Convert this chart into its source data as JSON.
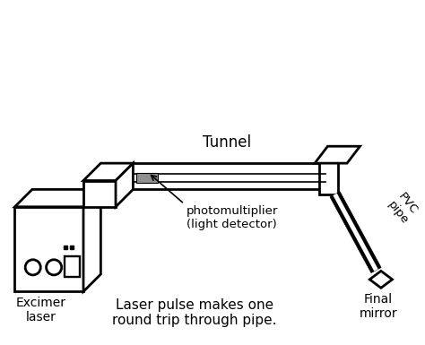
{
  "bg_color": "#ffffff",
  "lc": "#000000",
  "gray": "#909090",
  "lw": 2.0,
  "lw_thin": 1.2,
  "fig_width": 4.74,
  "fig_height": 3.85,
  "dpi": 100,
  "label_tunnel": "Tunnel",
  "label_excimer": "Excimer\nlaser",
  "label_photo": "photomultiplier\n(light detector)",
  "label_pvc": "PVC\npipe",
  "label_final": "Final\nmirror",
  "label_pulse": "Laser pulse makes one\nround trip through pipe."
}
